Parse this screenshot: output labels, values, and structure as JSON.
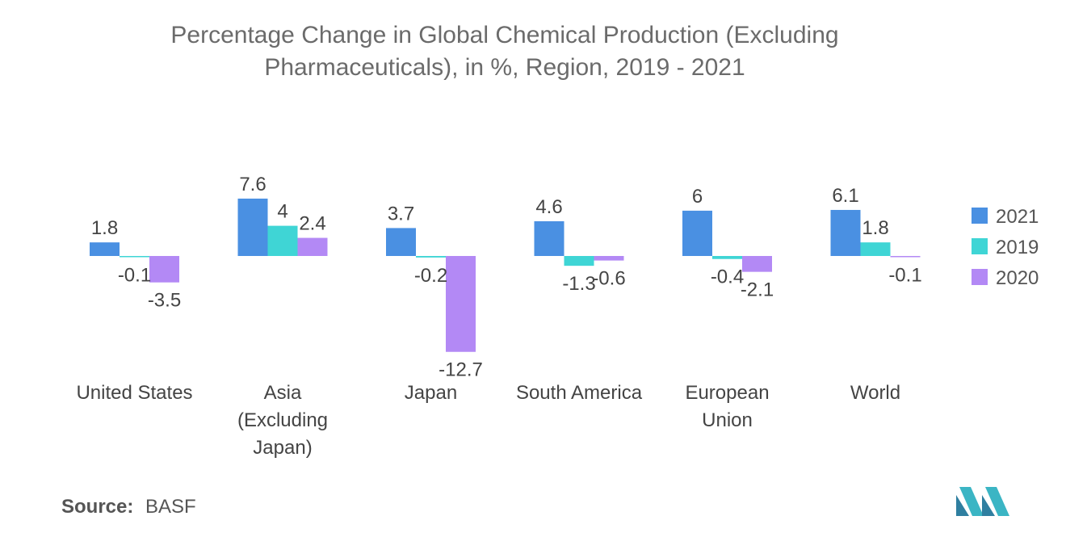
{
  "chart_data": {
    "type": "bar",
    "title": "Percentage Change in Global Chemical Production (Excluding Pharmaceuticals), in %, Region, 2019 - 2021",
    "categories": [
      [
        "United States"
      ],
      [
        "Asia",
        "(Excluding",
        "Japan)"
      ],
      [
        "Japan"
      ],
      [
        "South America"
      ],
      [
        "European",
        "Union"
      ],
      [
        "World"
      ]
    ],
    "series": [
      {
        "name": "2021",
        "color": "#4a90e2",
        "values": [
          1.8,
          7.6,
          3.7,
          4.6,
          6,
          6.1
        ]
      },
      {
        "name": "2019",
        "color": "#3fd5d5",
        "values": [
          -0.1,
          4,
          -0.2,
          -1.3,
          -0.4,
          1.8
        ]
      },
      {
        "name": "2020",
        "color": "#b389f5",
        "values": [
          -3.5,
          2.4,
          -12.7,
          -0.6,
          -2.1,
          -0.1
        ]
      }
    ],
    "legend_position": "right",
    "grid": false,
    "ylim": [
      -12.7,
      7.6
    ]
  },
  "source": {
    "label": "Source:",
    "value": "BASF"
  }
}
